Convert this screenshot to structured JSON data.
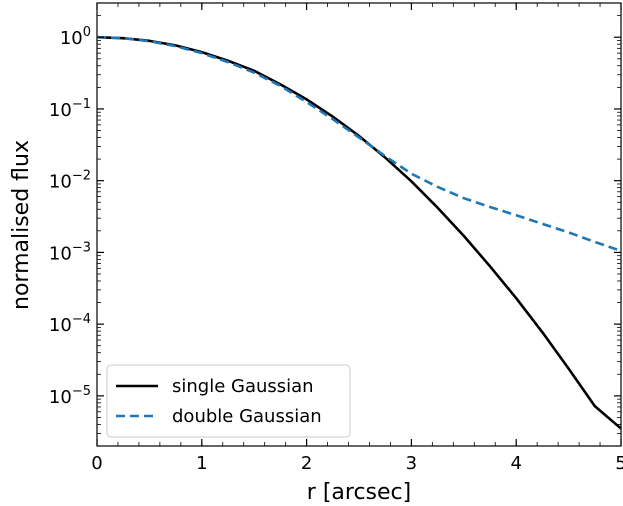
{
  "chart_data": {
    "type": "line",
    "xlabel": "r [arcsec]",
    "ylabel": "normalised flux",
    "xlim": [
      0,
      5
    ],
    "ylim": [
      2e-06,
      3.0
    ],
    "y_scale": "log",
    "grid": false,
    "legend_position": "lower-left",
    "x_ticks": [
      {
        "value": 0,
        "label": "0"
      },
      {
        "value": 1,
        "label": "1"
      },
      {
        "value": 2,
        "label": "2"
      },
      {
        "value": 3,
        "label": "3"
      },
      {
        "value": 4,
        "label": "4"
      },
      {
        "value": 5,
        "label": "5"
      }
    ],
    "y_ticks": [
      {
        "value": 1,
        "base": "10",
        "exp": "0"
      },
      {
        "value": 0.1,
        "base": "10",
        "exp": "−1"
      },
      {
        "value": 0.01,
        "base": "10",
        "exp": "−2"
      },
      {
        "value": 0.001,
        "base": "10",
        "exp": "−3"
      },
      {
        "value": 0.0001,
        "base": "10",
        "exp": "−4"
      },
      {
        "value": 1e-05,
        "base": "10",
        "exp": "−5"
      }
    ],
    "x": [
      0,
      0.25,
      0.5,
      0.75,
      1.0,
      1.25,
      1.5,
      1.75,
      2.0,
      2.25,
      2.5,
      2.75,
      3.0,
      3.25,
      3.5,
      3.75,
      4.0,
      4.25,
      4.5,
      4.75,
      5.0
    ],
    "series": [
      {
        "name": "single Gaussian",
        "color": "#000000",
        "dash": "solid",
        "values": [
          1.0,
          0.97,
          0.89,
          0.77,
          0.62,
          0.47,
          0.34,
          0.22,
          0.136,
          0.078,
          0.042,
          0.021,
          0.0098,
          0.0042,
          0.0017,
          0.00064,
          0.00023,
          7.7e-05,
          2.4e-05,
          7.2e-06,
          3.5e-06
        ]
      },
      {
        "name": "double Gaussian",
        "color": "#1f77b4",
        "dash": "dashed",
        "values": [
          1.0,
          0.97,
          0.88,
          0.75,
          0.6,
          0.45,
          0.32,
          0.21,
          0.125,
          0.072,
          0.04,
          0.022,
          0.0125,
          0.0082,
          0.0057,
          0.0043,
          0.0033,
          0.0025,
          0.0019,
          0.0014,
          0.00105
        ]
      }
    ]
  }
}
